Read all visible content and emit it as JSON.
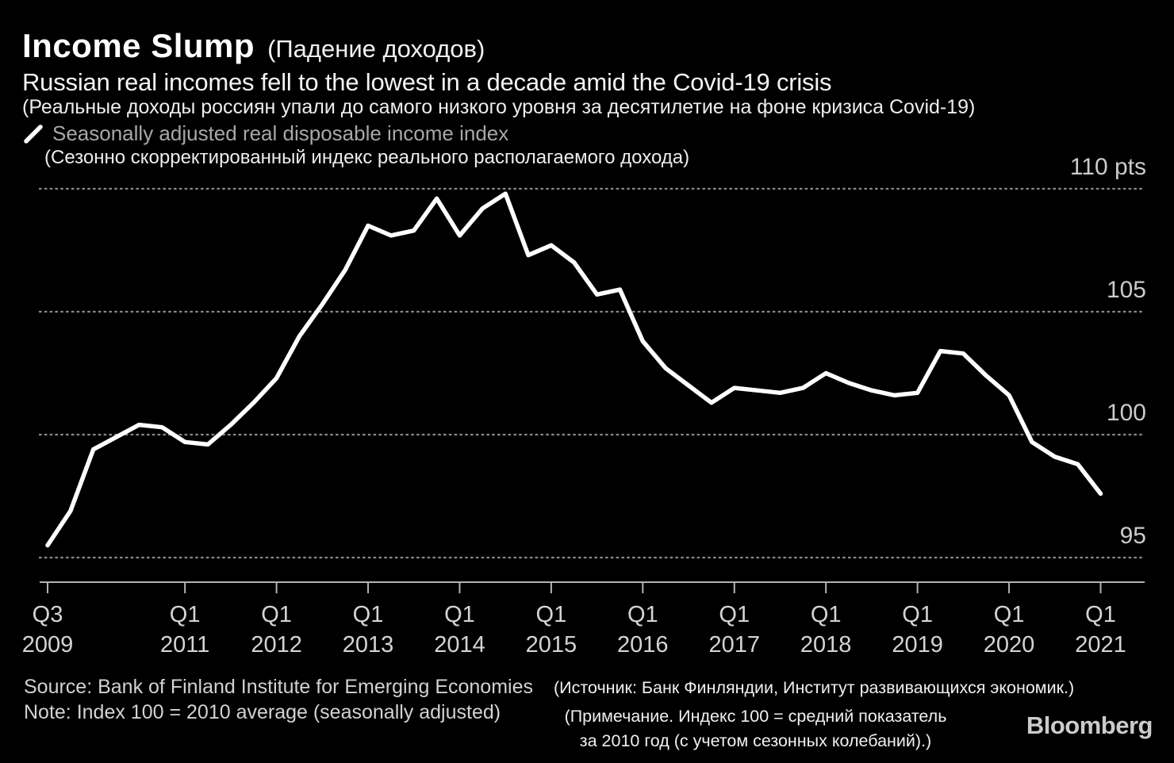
{
  "header": {
    "title": "Income Slump",
    "title_ru": "(Падение доходов)",
    "subtitle": "Russian real incomes fell to the lowest in a decade amid the Covid-19 crisis",
    "subtitle_ru": "(Реальные доходы россиян упали до самого низкого уровня за десятилетие на фоне кризиса Covid-19)",
    "legend": {
      "marker": "diagonal-line-sample",
      "label": "Seasonally adjusted real disposable income index",
      "label_ru": "(Сезонно скорректированный индекс реального располагаемого дохода)"
    }
  },
  "chart_data": {
    "type": "line",
    "title": "Income Slump",
    "unit": "pts",
    "line_color": "#ffffff",
    "grid": "horizontal-dashed",
    "legend_position": "top-left",
    "ylim": [
      93.6,
      110.8
    ],
    "x": [
      "Q3 2009",
      "Q4 2009",
      "Q1 2010",
      "Q2 2010",
      "Q3 2010",
      "Q4 2010",
      "Q1 2011",
      "Q2 2011",
      "Q3 2011",
      "Q4 2011",
      "Q1 2012",
      "Q2 2012",
      "Q3 2012",
      "Q4 2012",
      "Q1 2013",
      "Q2 2013",
      "Q3 2013",
      "Q4 2013",
      "Q1 2014",
      "Q2 2014",
      "Q3 2014",
      "Q4 2014",
      "Q1 2015",
      "Q2 2015",
      "Q3 2015",
      "Q4 2015",
      "Q1 2016",
      "Q2 2016",
      "Q3 2016",
      "Q4 2016",
      "Q1 2017",
      "Q2 2017",
      "Q3 2017",
      "Q4 2017",
      "Q1 2018",
      "Q2 2018",
      "Q3 2018",
      "Q4 2018",
      "Q1 2019",
      "Q2 2019",
      "Q3 2019",
      "Q4 2019",
      "Q1 2020",
      "Q2 2020",
      "Q3 2020",
      "Q4 2020",
      "Q1 2021"
    ],
    "values": [
      95.5,
      96.9,
      99.4,
      99.9,
      100.4,
      100.3,
      99.7,
      99.6,
      100.4,
      101.3,
      102.3,
      104,
      105.3,
      106.7,
      108.5,
      108.1,
      108.3,
      109.6,
      108.1,
      109.2,
      109.8,
      107.3,
      107.7,
      107,
      105.7,
      105.9,
      103.8,
      102.7,
      102,
      101.3,
      101.9,
      101.8,
      101.7,
      101.9,
      102.5,
      102.1,
      101.8,
      101.6,
      101.7,
      103.4,
      103.3,
      102.4,
      101.6,
      99.7,
      99.1,
      98.8,
      97.6
    ],
    "yticks": [
      {
        "v": 110,
        "label": "110 pts"
      },
      {
        "v": 105,
        "label": "105"
      },
      {
        "v": 100,
        "label": "100"
      },
      {
        "v": 95,
        "label": "95"
      }
    ],
    "xticks": [
      {
        "i": 0,
        "line1": "Q3",
        "line2": "2009"
      },
      {
        "i": 6,
        "line1": "Q1",
        "line2": "2011"
      },
      {
        "i": 10,
        "line1": "Q1",
        "line2": "2012"
      },
      {
        "i": 14,
        "line1": "Q1",
        "line2": "2013"
      },
      {
        "i": 18,
        "line1": "Q1",
        "line2": "2014"
      },
      {
        "i": 22,
        "line1": "Q1",
        "line2": "2015"
      },
      {
        "i": 26,
        "line1": "Q1",
        "line2": "2016"
      },
      {
        "i": 30,
        "line1": "Q1",
        "line2": "2017"
      },
      {
        "i": 34,
        "line1": "Q1",
        "line2": "2018"
      },
      {
        "i": 38,
        "line1": "Q1",
        "line2": "2019"
      },
      {
        "i": 42,
        "line1": "Q1",
        "line2": "2020"
      },
      {
        "i": 46,
        "line1": "Q1",
        "line2": "2021"
      }
    ]
  },
  "footer": {
    "source": "Source: Bank of Finland Institute for Emerging Economies",
    "source_ru": "(Источник: Банк Финляндии, Институт развивающихся экономик.)",
    "note": "Note: Index 100 = 2010 average (seasonally adjusted)",
    "note_ru_line1": "(Примечание. Индекс 100 = средний показатель",
    "note_ru_line2": "за 2010 год (с учетом сезонных колебаний).)",
    "brand": "Bloomberg"
  },
  "colors": {
    "background": "#000000",
    "line": "#ffffff",
    "gridline": "#878787",
    "axis": "#b3b3b3",
    "tick_label": "#d4d4d4",
    "legend_label": "#a8a8a8"
  }
}
